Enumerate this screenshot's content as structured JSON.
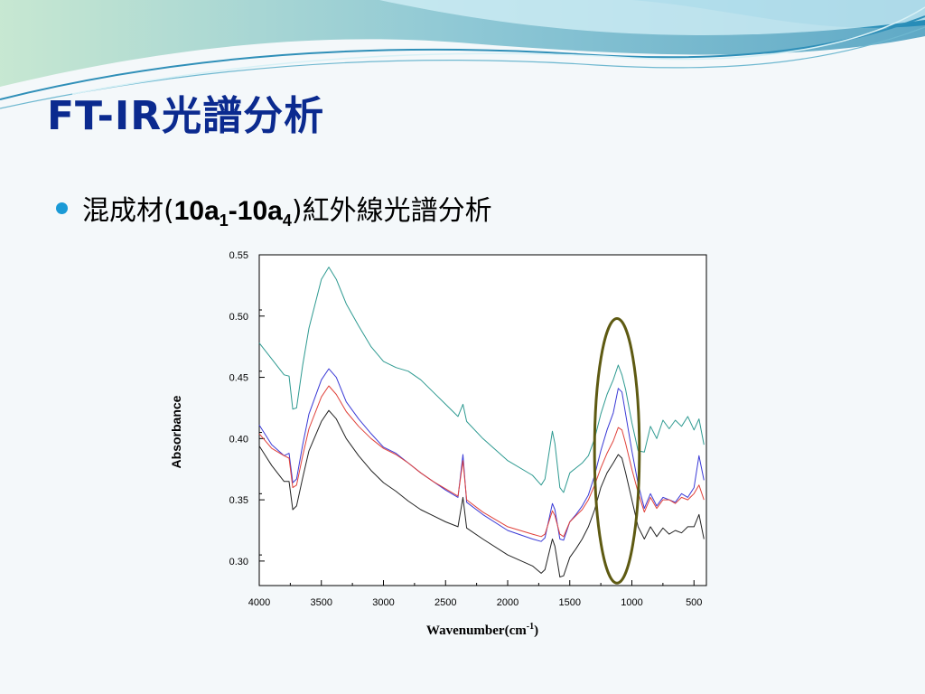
{
  "slide": {
    "title": "FT-IR光譜分析",
    "bullet": {
      "prefix": "混成材(",
      "sample_a": "10a",
      "sub_a": "1",
      "dash": "-",
      "sample_b": "10a",
      "sub_b": "4",
      "suffix": ")紅外線光譜分析"
    }
  },
  "colors": {
    "title": "#0b2a8f",
    "bullet": "#1a9ad6",
    "highlight_ellipse": "#5e5a12",
    "series": [
      "#2e9a91",
      "#3a3ad6",
      "#e0413a",
      "#222222"
    ]
  },
  "chart_data": {
    "type": "line",
    "xlabel": "Wavenumber(cm",
    "xlabel_sup": "-1",
    "xlabel_close": ")",
    "ylabel": "Absorbance",
    "xlim": [
      4000,
      400
    ],
    "ylim": [
      0.28,
      0.55
    ],
    "x_reversed": true,
    "xticks": [
      4000,
      3500,
      3000,
      2500,
      2000,
      1500,
      1000,
      500
    ],
    "yticks": [
      "0.30",
      "0.35",
      "0.40",
      "0.45",
      "0.50",
      "0.55"
    ],
    "ytick_values": [
      0.3,
      0.35,
      0.4,
      0.45,
      0.5,
      0.55
    ],
    "grid": false,
    "legend": "none",
    "highlight": {
      "shape": "ellipse",
      "x_center": 1120,
      "y_center": 0.39,
      "x_half_width": 195,
      "y_half_height": 0.108
    },
    "series": [
      {
        "color": "#2e9a91",
        "points": [
          [
            4000,
            0.478
          ],
          [
            3900,
            0.465
          ],
          [
            3800,
            0.452
          ],
          [
            3760,
            0.451
          ],
          [
            3730,
            0.424
          ],
          [
            3700,
            0.425
          ],
          [
            3650,
            0.46
          ],
          [
            3600,
            0.49
          ],
          [
            3500,
            0.53
          ],
          [
            3440,
            0.54
          ],
          [
            3380,
            0.53
          ],
          [
            3300,
            0.51
          ],
          [
            3200,
            0.492
          ],
          [
            3100,
            0.475
          ],
          [
            3000,
            0.463
          ],
          [
            2900,
            0.458
          ],
          [
            2800,
            0.455
          ],
          [
            2700,
            0.448
          ],
          [
            2600,
            0.438
          ],
          [
            2500,
            0.428
          ],
          [
            2400,
            0.418
          ],
          [
            2360,
            0.428
          ],
          [
            2330,
            0.414
          ],
          [
            2200,
            0.4
          ],
          [
            2000,
            0.382
          ],
          [
            1800,
            0.37
          ],
          [
            1730,
            0.362
          ],
          [
            1700,
            0.367
          ],
          [
            1640,
            0.406
          ],
          [
            1620,
            0.396
          ],
          [
            1580,
            0.36
          ],
          [
            1550,
            0.356
          ],
          [
            1500,
            0.372
          ],
          [
            1450,
            0.376
          ],
          [
            1400,
            0.38
          ],
          [
            1350,
            0.386
          ],
          [
            1300,
            0.4
          ],
          [
            1250,
            0.42
          ],
          [
            1200,
            0.436
          ],
          [
            1150,
            0.448
          ],
          [
            1110,
            0.46
          ],
          [
            1080,
            0.452
          ],
          [
            1050,
            0.44
          ],
          [
            1000,
            0.413
          ],
          [
            950,
            0.39
          ],
          [
            900,
            0.389
          ],
          [
            850,
            0.41
          ],
          [
            800,
            0.4
          ],
          [
            750,
            0.415
          ],
          [
            700,
            0.408
          ],
          [
            650,
            0.415
          ],
          [
            600,
            0.41
          ],
          [
            550,
            0.418
          ],
          [
            500,
            0.407
          ],
          [
            460,
            0.416
          ],
          [
            420,
            0.395
          ]
        ]
      },
      {
        "color": "#3a3ad6",
        "points": [
          [
            4000,
            0.411
          ],
          [
            3900,
            0.395
          ],
          [
            3800,
            0.386
          ],
          [
            3760,
            0.388
          ],
          [
            3730,
            0.364
          ],
          [
            3700,
            0.367
          ],
          [
            3650,
            0.395
          ],
          [
            3600,
            0.42
          ],
          [
            3500,
            0.448
          ],
          [
            3440,
            0.457
          ],
          [
            3380,
            0.45
          ],
          [
            3300,
            0.43
          ],
          [
            3200,
            0.416
          ],
          [
            3100,
            0.404
          ],
          [
            3000,
            0.393
          ],
          [
            2900,
            0.388
          ],
          [
            2800,
            0.38
          ],
          [
            2700,
            0.372
          ],
          [
            2600,
            0.365
          ],
          [
            2500,
            0.358
          ],
          [
            2400,
            0.352
          ],
          [
            2360,
            0.387
          ],
          [
            2330,
            0.348
          ],
          [
            2200,
            0.338
          ],
          [
            2000,
            0.325
          ],
          [
            1800,
            0.318
          ],
          [
            1730,
            0.316
          ],
          [
            1700,
            0.319
          ],
          [
            1640,
            0.347
          ],
          [
            1620,
            0.342
          ],
          [
            1580,
            0.318
          ],
          [
            1550,
            0.317
          ],
          [
            1500,
            0.332
          ],
          [
            1450,
            0.338
          ],
          [
            1400,
            0.345
          ],
          [
            1350,
            0.354
          ],
          [
            1300,
            0.37
          ],
          [
            1250,
            0.39
          ],
          [
            1200,
            0.407
          ],
          [
            1150,
            0.421
          ],
          [
            1110,
            0.441
          ],
          [
            1080,
            0.438
          ],
          [
            1050,
            0.42
          ],
          [
            1000,
            0.39
          ],
          [
            950,
            0.363
          ],
          [
            900,
            0.343
          ],
          [
            850,
            0.355
          ],
          [
            800,
            0.345
          ],
          [
            750,
            0.352
          ],
          [
            700,
            0.35
          ],
          [
            650,
            0.348
          ],
          [
            600,
            0.355
          ],
          [
            550,
            0.352
          ],
          [
            500,
            0.36
          ],
          [
            460,
            0.386
          ],
          [
            420,
            0.366
          ]
        ]
      },
      {
        "color": "#e0413a",
        "points": [
          [
            4000,
            0.404
          ],
          [
            3900,
            0.392
          ],
          [
            3800,
            0.386
          ],
          [
            3760,
            0.384
          ],
          [
            3730,
            0.36
          ],
          [
            3700,
            0.362
          ],
          [
            3650,
            0.386
          ],
          [
            3600,
            0.408
          ],
          [
            3500,
            0.434
          ],
          [
            3440,
            0.443
          ],
          [
            3380,
            0.436
          ],
          [
            3300,
            0.422
          ],
          [
            3200,
            0.41
          ],
          [
            3100,
            0.4
          ],
          [
            3000,
            0.392
          ],
          [
            2900,
            0.387
          ],
          [
            2800,
            0.38
          ],
          [
            2700,
            0.372
          ],
          [
            2600,
            0.365
          ],
          [
            2500,
            0.359
          ],
          [
            2400,
            0.353
          ],
          [
            2360,
            0.382
          ],
          [
            2330,
            0.35
          ],
          [
            2200,
            0.34
          ],
          [
            2000,
            0.328
          ],
          [
            1800,
            0.322
          ],
          [
            1730,
            0.32
          ],
          [
            1700,
            0.322
          ],
          [
            1640,
            0.341
          ],
          [
            1620,
            0.337
          ],
          [
            1580,
            0.322
          ],
          [
            1550,
            0.32
          ],
          [
            1500,
            0.332
          ],
          [
            1450,
            0.337
          ],
          [
            1400,
            0.342
          ],
          [
            1350,
            0.35
          ],
          [
            1300,
            0.362
          ],
          [
            1250,
            0.376
          ],
          [
            1200,
            0.388
          ],
          [
            1150,
            0.398
          ],
          [
            1110,
            0.409
          ],
          [
            1080,
            0.407
          ],
          [
            1050,
            0.396
          ],
          [
            1000,
            0.375
          ],
          [
            950,
            0.356
          ],
          [
            900,
            0.34
          ],
          [
            850,
            0.352
          ],
          [
            800,
            0.343
          ],
          [
            750,
            0.35
          ],
          [
            700,
            0.35
          ],
          [
            650,
            0.347
          ],
          [
            600,
            0.352
          ],
          [
            550,
            0.35
          ],
          [
            500,
            0.355
          ],
          [
            460,
            0.362
          ],
          [
            420,
            0.35
          ]
        ]
      },
      {
        "color": "#222222",
        "points": [
          [
            4000,
            0.394
          ],
          [
            3900,
            0.378
          ],
          [
            3800,
            0.365
          ],
          [
            3760,
            0.365
          ],
          [
            3730,
            0.342
          ],
          [
            3700,
            0.345
          ],
          [
            3650,
            0.368
          ],
          [
            3600,
            0.39
          ],
          [
            3500,
            0.414
          ],
          [
            3440,
            0.423
          ],
          [
            3380,
            0.416
          ],
          [
            3300,
            0.4
          ],
          [
            3200,
            0.386
          ],
          [
            3100,
            0.374
          ],
          [
            3000,
            0.364
          ],
          [
            2900,
            0.357
          ],
          [
            2800,
            0.349
          ],
          [
            2700,
            0.342
          ],
          [
            2600,
            0.337
          ],
          [
            2500,
            0.332
          ],
          [
            2400,
            0.328
          ],
          [
            2360,
            0.352
          ],
          [
            2330,
            0.327
          ],
          [
            2200,
            0.318
          ],
          [
            2000,
            0.305
          ],
          [
            1800,
            0.296
          ],
          [
            1730,
            0.29
          ],
          [
            1700,
            0.293
          ],
          [
            1640,
            0.318
          ],
          [
            1620,
            0.312
          ],
          [
            1580,
            0.287
          ],
          [
            1550,
            0.288
          ],
          [
            1500,
            0.303
          ],
          [
            1450,
            0.31
          ],
          [
            1400,
            0.318
          ],
          [
            1350,
            0.328
          ],
          [
            1300,
            0.342
          ],
          [
            1250,
            0.36
          ],
          [
            1200,
            0.372
          ],
          [
            1150,
            0.38
          ],
          [
            1110,
            0.387
          ],
          [
            1080,
            0.384
          ],
          [
            1050,
            0.372
          ],
          [
            1000,
            0.35
          ],
          [
            950,
            0.328
          ],
          [
            900,
            0.318
          ],
          [
            850,
            0.328
          ],
          [
            800,
            0.32
          ],
          [
            750,
            0.327
          ],
          [
            700,
            0.322
          ],
          [
            650,
            0.325
          ],
          [
            600,
            0.323
          ],
          [
            550,
            0.328
          ],
          [
            500,
            0.328
          ],
          [
            460,
            0.338
          ],
          [
            420,
            0.318
          ]
        ]
      }
    ]
  }
}
